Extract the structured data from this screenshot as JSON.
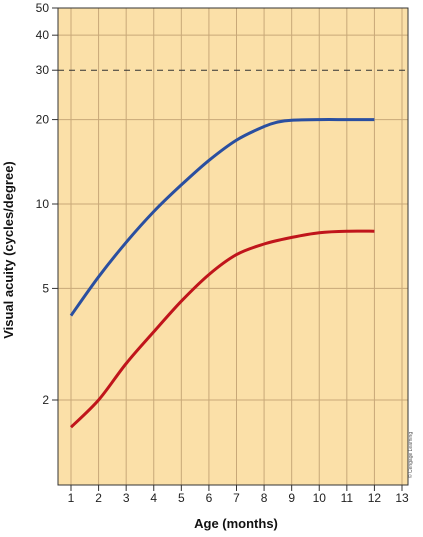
{
  "chart_data": {
    "type": "line",
    "title": "",
    "xlabel": "Age (months)",
    "ylabel": "Visual acuity (cycles/degree)",
    "x_ticks": [
      1,
      2,
      3,
      4,
      5,
      6,
      7,
      8,
      9,
      10,
      11,
      12,
      13
    ],
    "y_ticks": [
      2,
      5,
      10,
      20,
      30,
      40,
      50
    ],
    "xlim": [
      0.5,
      13
    ],
    "ylim": [
      1.2,
      50
    ],
    "y_scale": "log",
    "grid": true,
    "reference_line": {
      "y": 30,
      "style": "dashed",
      "color": "#333333"
    },
    "series": [
      {
        "color": "#2a4fa0",
        "x": [
          1,
          2,
          3,
          4,
          5,
          6,
          7,
          8,
          8.5,
          9,
          10,
          11,
          12
        ],
        "y": [
          4.0,
          5.5,
          7.3,
          9.4,
          11.7,
          14.3,
          16.9,
          18.9,
          19.6,
          19.9,
          20,
          20,
          20
        ]
      },
      {
        "color": "#c0151b",
        "x": [
          1,
          2,
          3,
          4,
          5,
          6,
          7,
          8,
          9,
          10,
          11,
          12
        ],
        "y": [
          1.6,
          2.0,
          2.7,
          3.5,
          4.5,
          5.6,
          6.6,
          7.2,
          7.6,
          7.9,
          8.0,
          8.0
        ]
      }
    ],
    "credit": "© Cengage Learning",
    "colors": {
      "plot_background": "#fbe0a8",
      "grid": "#c8a878",
      "frame": "#333333"
    }
  }
}
